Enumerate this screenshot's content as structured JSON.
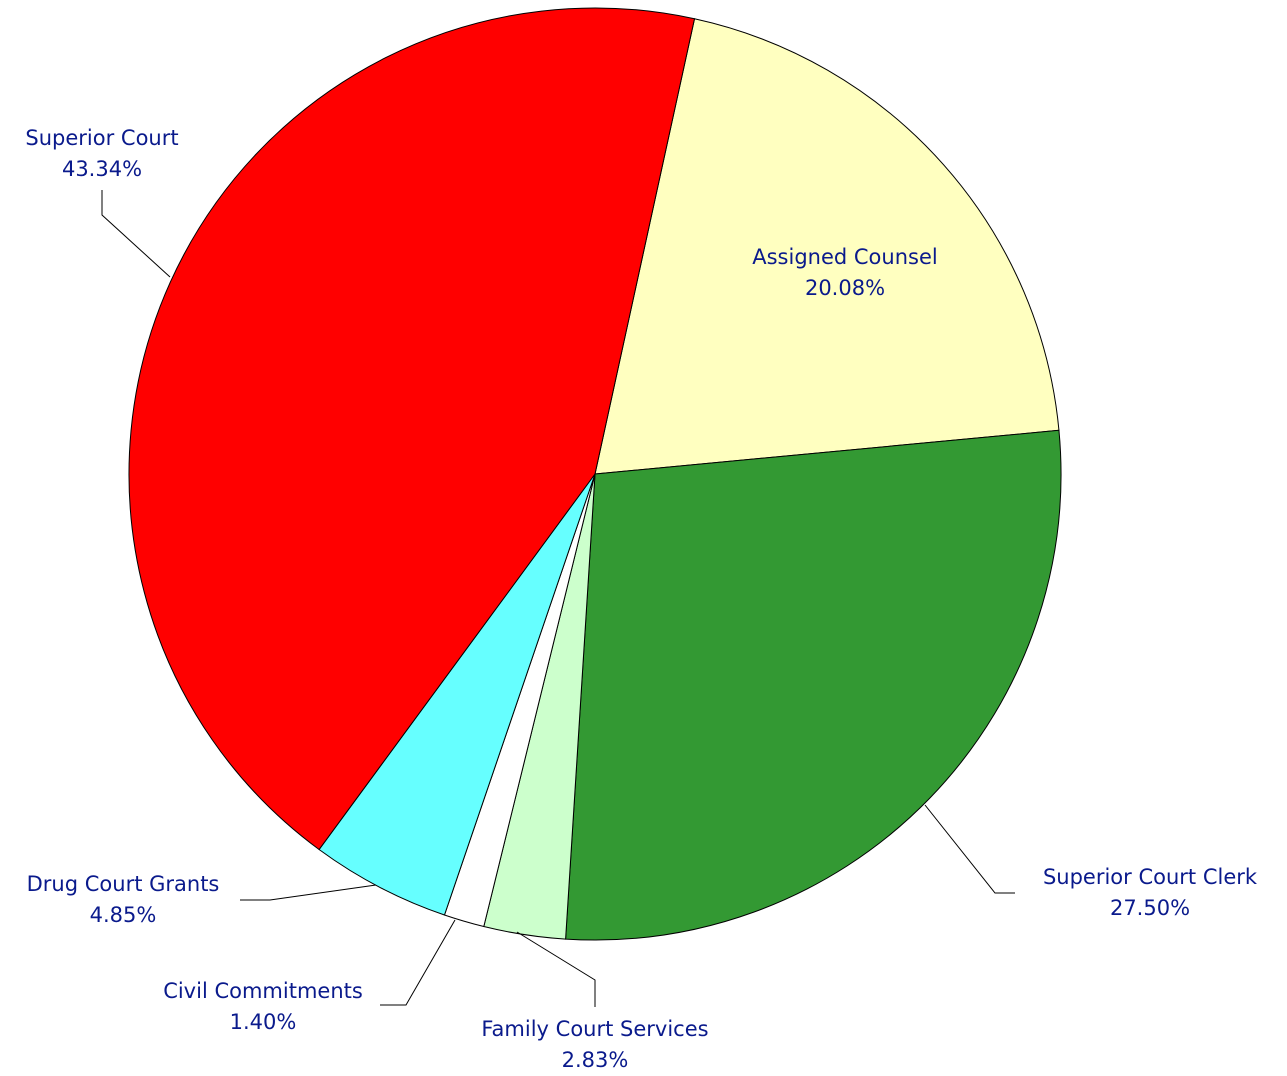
{
  "chart_data": {
    "type": "pie",
    "title": "",
    "start_angle_deg": 12.33,
    "direction": "clockwise",
    "slices": [
      {
        "label": "Assigned Counsel",
        "value": 20.08,
        "percent_label": "20.08%",
        "color": "#ffffc0"
      },
      {
        "label": "Superior Court Clerk",
        "value": 27.5,
        "percent_label": "27.50%",
        "color": "#339933"
      },
      {
        "label": "Family Court Services",
        "value": 2.83,
        "percent_label": "2.83%",
        "color": "#ccffcc"
      },
      {
        "label": "Civil Commitments",
        "value": 1.4,
        "percent_label": "1.40%",
        "color": "#ffffff"
      },
      {
        "label": "Drug Court Grants",
        "value": 4.85,
        "percent_label": "4.85%",
        "color": "#66ffff"
      },
      {
        "label": "Superior Court",
        "value": 43.34,
        "percent_label": "43.34%",
        "color": "#ff0000"
      }
    ]
  }
}
